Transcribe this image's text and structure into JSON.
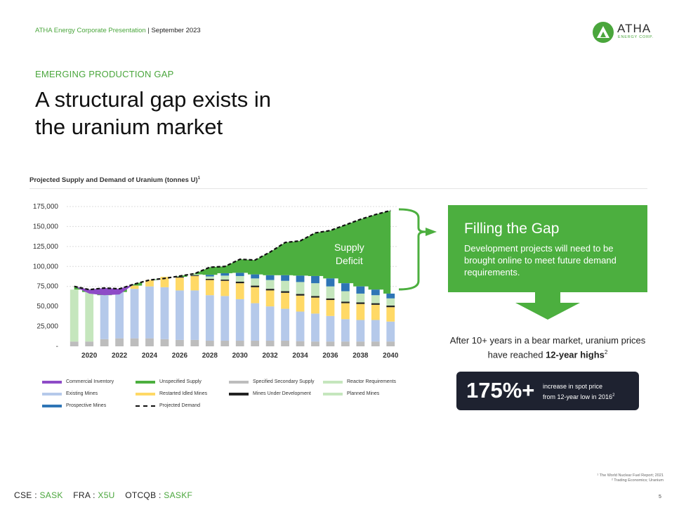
{
  "header": {
    "presentation": "ATHA Energy Corporate Presentation",
    "separator": "|",
    "date": "September 2023"
  },
  "logo": {
    "name": "ATHA",
    "sub": "ENERGY CORP."
  },
  "kicker": "EMERGING PRODUCTION GAP",
  "title_line1": "A structural gap exists in",
  "title_line2": "the uranium market",
  "chart_title": "Projected Supply and Demand of Uranium (tonnes U)",
  "chart_title_sup": "1",
  "gap_box": {
    "title": "Filling the Gap",
    "body": "Development projects will need to be brought online to meet future demand requirements."
  },
  "after_text": "After 10+ years in a bear market, uranium prices have reached ",
  "after_bold": "12-year highs",
  "after_sup": "2",
  "stat": {
    "value": "175%+",
    "line1": "increase in spot price",
    "line2": "from 12-year low in 2016",
    "sup": "2"
  },
  "footnotes": [
    "¹ The World Nuclear Fuel Report; 2021",
    "² Trading Economics; Uranium"
  ],
  "tickers": {
    "cse_label": "CSE :",
    "cse": "SASK",
    "fra_label": "FRA :",
    "fra": "X5U",
    "otc_label": "OTCQB :",
    "otc": "SASKF"
  },
  "page_number": "5",
  "colors": {
    "green": "#4caf3f",
    "commercial_inventory": "#8e4bc7",
    "unspecified_supply": "#4caf3f",
    "specified_secondary": "#bdbdbd",
    "reactor_requirements": "#c5e6bd",
    "existing_mines": "#b5c9ea",
    "restarted_idled": "#ffd966",
    "under_development": "#222222",
    "planned_mines": "#c5e6bd",
    "prospective_mines": "#2e75b6",
    "projected_demand": "#111111"
  },
  "chart_data": {
    "type": "bar",
    "title": "Projected Supply and Demand of Uranium (tonnes U)",
    "x": [
      2019,
      2020,
      2021,
      2022,
      2023,
      2024,
      2025,
      2026,
      2027,
      2028,
      2029,
      2030,
      2031,
      2032,
      2033,
      2034,
      2035,
      2036,
      2037,
      2038,
      2039,
      2040
    ],
    "x_tick_labels": [
      "2020",
      "2022",
      "2024",
      "2026",
      "2028",
      "2030",
      "2032",
      "2034",
      "2036",
      "2038",
      "2040"
    ],
    "ylim": [
      0,
      175000
    ],
    "y_tick_labels": [
      "-",
      "25,000",
      "50,000",
      "75,000",
      "100,000",
      "125,000",
      "150,000",
      "175,000"
    ],
    "grid": true,
    "annotation": {
      "line1": "Supply",
      "line2": "Deficit"
    },
    "series": [
      {
        "name": "Specified Secondary Supply",
        "values": [
          6000,
          6000,
          9000,
          10000,
          10000,
          10000,
          9000,
          8000,
          8000,
          7000,
          7000,
          7000,
          7000,
          7000,
          7000,
          6500,
          6000,
          6000,
          6000,
          6000,
          6000,
          6000
        ]
      },
      {
        "name": "Existing Mines",
        "values": [
          0,
          0,
          55000,
          58000,
          62000,
          65000,
          65000,
          62000,
          62000,
          57000,
          56000,
          52000,
          47000,
          43000,
          40000,
          37000,
          35000,
          32000,
          28000,
          27000,
          27000,
          25000
        ]
      },
      {
        "name": "Reactor Requirements",
        "values": [
          65000,
          62000,
          0,
          0,
          0,
          0,
          0,
          0,
          0,
          0,
          0,
          0,
          0,
          0,
          0,
          0,
          0,
          0,
          0,
          0,
          0,
          0
        ]
      },
      {
        "name": "Restarted Idled Mines",
        "values": [
          0,
          0,
          0,
          0,
          4000,
          8000,
          13000,
          16000,
          18000,
          19000,
          19000,
          20000,
          20000,
          20000,
          20000,
          20000,
          20000,
          20000,
          20000,
          20000,
          19000,
          18000
        ]
      },
      {
        "name": "Mines Under Development",
        "values": [
          0,
          0,
          0,
          0,
          0,
          0,
          0,
          1000,
          1000,
          1500,
          1500,
          2000,
          2000,
          2000,
          2000,
          2000,
          2000,
          2000,
          2000,
          2000,
          2000,
          2000
        ]
      },
      {
        "name": "Planned Mines",
        "values": [
          0,
          0,
          0,
          0,
          0,
          0,
          0,
          0,
          1000,
          3000,
          5000,
          7000,
          9000,
          11000,
          13000,
          15000,
          16000,
          15000,
          13000,
          11000,
          10000,
          9000
        ]
      },
      {
        "name": "Prospective Mines",
        "values": [
          0,
          0,
          0,
          0,
          0,
          0,
          0,
          0,
          0,
          2000,
          3000,
          4000,
          5000,
          6000,
          7000,
          8000,
          9000,
          10000,
          10000,
          9000,
          7000,
          6000
        ]
      }
    ],
    "lines": [
      {
        "name": "Projected Demand",
        "values": [
          75000,
          71000,
          73000,
          72000,
          78000,
          83000,
          85000,
          88000,
          91000,
          99000,
          100000,
          109000,
          108000,
          118000,
          130000,
          132000,
          142000,
          145000,
          152000,
          159000,
          165000,
          170000
        ]
      },
      {
        "name": "Commercial Inventory",
        "values": [
          0,
          5000,
          9000,
          7000,
          0,
          0,
          0,
          0,
          0,
          0,
          0,
          0,
          0,
          0,
          0,
          0,
          0,
          0,
          0,
          0,
          0,
          0
        ]
      }
    ],
    "legend": {
      "position": "bottom",
      "entries": [
        "Commercial Inventory",
        "Unspecified Supply",
        "Specified Secondary Supply",
        "Reactor Requirements",
        "Existing Mines",
        "Restarted Idled Mines",
        "Mines Under Development",
        "Planned Mines",
        "Prospective Mines",
        "Projected Demand"
      ]
    }
  }
}
